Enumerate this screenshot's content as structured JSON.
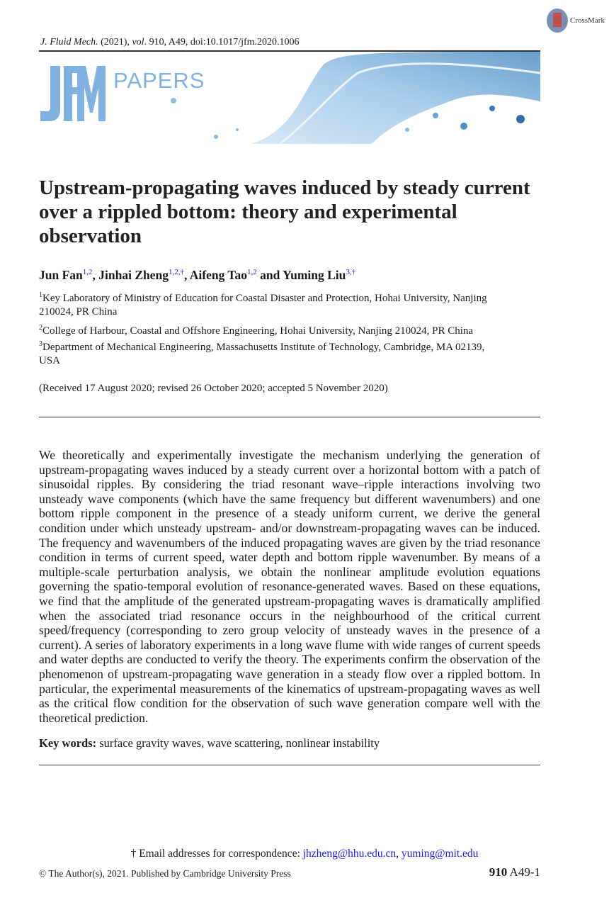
{
  "crossmark": {
    "label": "CrossMark"
  },
  "header": {
    "journal": "J. Fluid Mech.",
    "year": "(2021),",
    "vol_label": "vol",
    "citation": ". 910, A49, doi:10.1017/jfm.2020.1006"
  },
  "banner": {
    "logo": "JFM",
    "papers": "PAPERS",
    "colors": {
      "logo": "#7fb2e0",
      "water": "#9cc6e8"
    }
  },
  "title": "Upstream-propagating waves induced by steady current over a rippled bottom: theory and experimental observation",
  "authors": [
    {
      "name": "Jun Fan",
      "sup": "1,2",
      "sep": ", "
    },
    {
      "name": "Jinhai Zheng",
      "sup": "1,2,†",
      "sep": ", "
    },
    {
      "name": "Aifeng Tao",
      "sup": "1,2",
      "sep": " and "
    },
    {
      "name": "Yuming Liu",
      "sup": "3,†",
      "sep": ""
    }
  ],
  "affiliations": [
    {
      "num": "1",
      "text": "Key Laboratory of Ministry of Education for Coastal Disaster and Protection, Hohai University, Nanjing 210024, PR China"
    },
    {
      "num": "2",
      "text": "College of Harbour, Coastal and Offshore Engineering, Hohai University, Nanjing 210024, PR China"
    },
    {
      "num": "3",
      "text": "Department of Mechanical Engineering, Massachusetts Institute of Technology, Cambridge, MA 02139, USA"
    }
  ],
  "received": "(Received 17 August 2020; revised 26 October 2020; accepted 5 November 2020)",
  "abstract": "We theoretically and experimentally investigate the mechanism underlying the generation of upstream-propagating waves induced by a steady current over a horizontal bottom with a patch of sinusoidal ripples. By considering the triad resonant wave–ripple interactions involving two unsteady wave components (which have the same frequency but different wavenumbers) and one bottom ripple component in the presence of a steady uniform current, we derive the general condition under which unsteady upstream- and/or downstream-propagating waves can be induced. The frequency and wavenumbers of the induced propagating waves are given by the triad resonance condition in terms of current speed, water depth and bottom ripple wavenumber. By means of a multiple-scale perturbation analysis, we obtain the nonlinear amplitude evolution equations governing the spatio-temporal evolution of resonance-generated waves. Based on these equations, we find that the amplitude of the generated upstream-propagating waves is dramatically amplified when the associated triad resonance occurs in the neighbourhood of the critical current speed/frequency (corresponding to zero group velocity of unsteady waves in the presence of a current). A series of laboratory experiments in a long wave flume with wide ranges of current speeds and water depths are conducted to verify the theory. The experiments confirm the observation of the phenomenon of upstream-propagating wave generation in a steady flow over a rippled bottom. In particular, the experimental measurements of the kinematics of upstream-propagating waves as well as the critical flow condition for the observation of such wave generation compare well with the theoretical prediction.",
  "keywords": {
    "label": "Key words:",
    "text": " surface gravity waves, wave scattering, nonlinear instability"
  },
  "footnote": {
    "prefix": "† Email addresses for correspondence: ",
    "email1": "jhzheng@hhu.edu.cn",
    "sep": ", ",
    "email2": "yuming@mit.edu"
  },
  "footer": {
    "copyright": "© The Author(s), 2021. Published by Cambridge University Press",
    "volume": "910",
    "page": " A49-1"
  }
}
